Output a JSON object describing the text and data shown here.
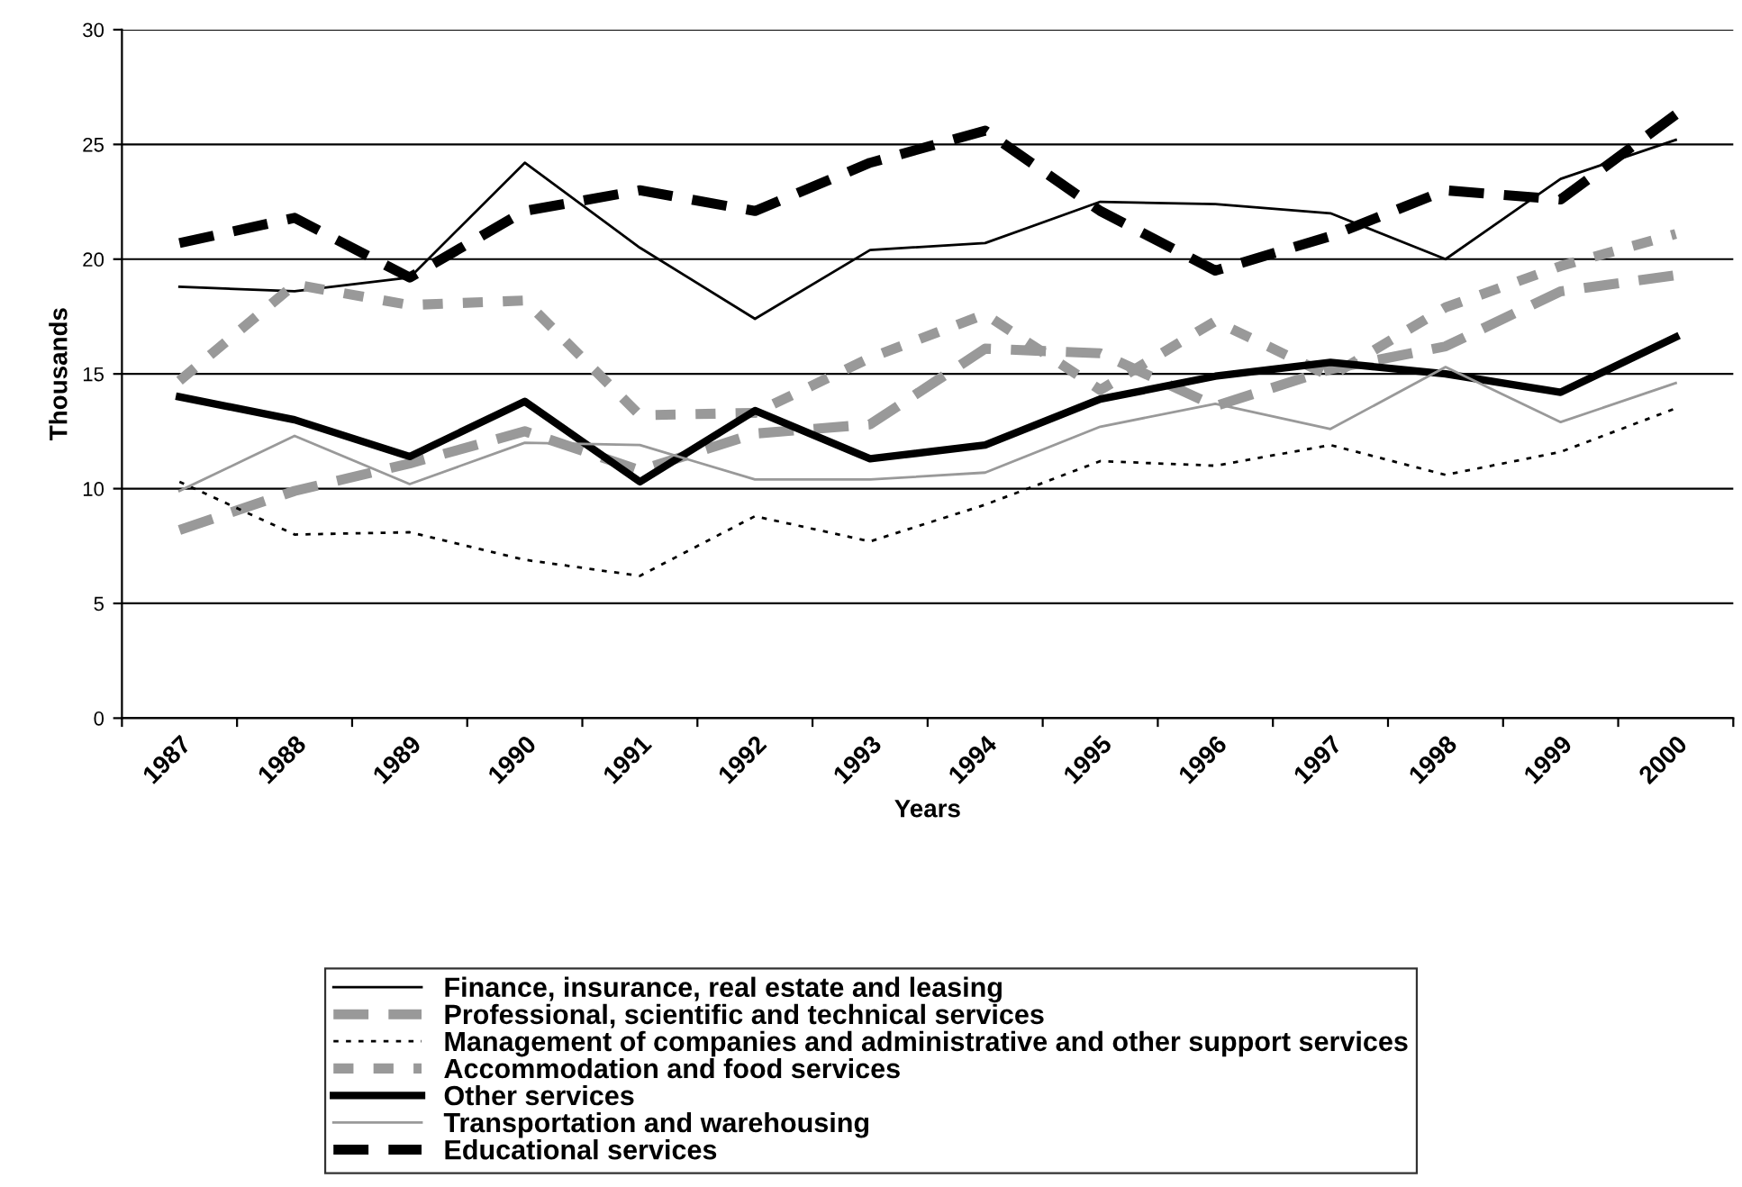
{
  "chart_data": {
    "type": "line",
    "xlabel": "Years",
    "ylabel": "Thousands",
    "categories": [
      "1987",
      "1988",
      "1989",
      "1990",
      "1991",
      "1992",
      "1993",
      "1994",
      "1995",
      "1996",
      "1997",
      "1998",
      "1999",
      "2000"
    ],
    "ylim": [
      0,
      30
    ],
    "yticks": [
      0,
      5,
      10,
      15,
      20,
      25,
      30
    ],
    "grid": "y",
    "legend": "bottom",
    "marker": "none",
    "series": [
      {
        "name": "Finance, insurance, real estate and leasing",
        "color": "#000000",
        "line_style": "solid",
        "values": [
          18.8,
          18.6,
          19.2,
          24.2,
          20.5,
          17.4,
          20.4,
          20.7,
          22.5,
          22.4,
          22.0,
          20.0,
          23.5,
          25.2
        ]
      },
      {
        "name": "Professional, scientific and technical services",
        "color": "#999999",
        "line_style": "dashed",
        "values": [
          8.2,
          9.9,
          11.1,
          12.5,
          10.8,
          12.4,
          12.8,
          16.1,
          15.9,
          13.6,
          15.2,
          16.2,
          18.6,
          19.3
        ]
      },
      {
        "name": "Management of companies and administrative and other support services",
        "color": "#000000",
        "line_style": "dotted",
        "values": [
          10.3,
          8.0,
          8.1,
          6.9,
          6.2,
          8.8,
          7.7,
          9.3,
          11.2,
          11.0,
          11.9,
          10.6,
          11.6,
          13.5
        ]
      },
      {
        "name": "Accommodation and food services",
        "color": "#999999",
        "line_style": "dashed",
        "values": [
          14.7,
          18.9,
          18.0,
          18.2,
          13.2,
          13.3,
          15.7,
          17.6,
          14.3,
          17.3,
          14.9,
          17.9,
          19.7,
          21.1
        ]
      },
      {
        "name": "Other services",
        "color": "#000000",
        "line_style": "solid",
        "values": [
          14.0,
          13.0,
          11.4,
          13.8,
          10.3,
          13.4,
          11.3,
          11.9,
          13.9,
          14.9,
          15.5,
          15.0,
          14.2,
          16.6
        ]
      },
      {
        "name": "Transportation and warehousing",
        "color": "#999999",
        "line_style": "solid",
        "values": [
          9.9,
          12.3,
          10.2,
          12.0,
          11.9,
          10.4,
          10.4,
          10.7,
          12.7,
          13.7,
          12.6,
          15.3,
          12.9,
          14.6
        ]
      },
      {
        "name": "Educational services",
        "color": "#000000",
        "line_style": "dashed",
        "values": [
          20.7,
          21.8,
          19.2,
          22.1,
          23.0,
          22.1,
          24.2,
          25.6,
          22.1,
          19.5,
          21.0,
          23.0,
          22.6,
          26.3
        ]
      }
    ]
  }
}
